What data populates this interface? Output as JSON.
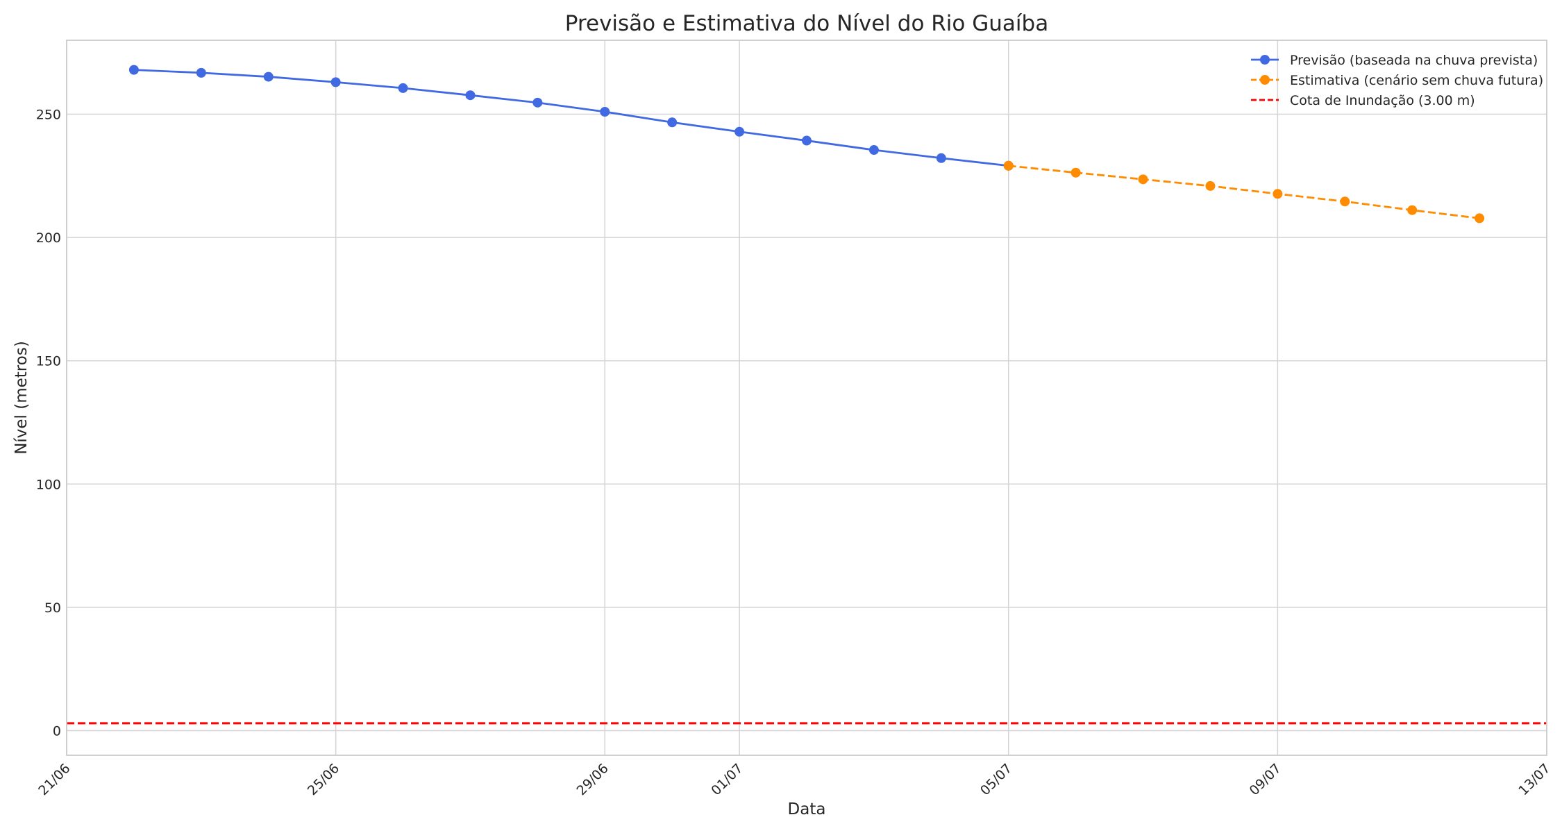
{
  "chart_data": {
    "type": "line",
    "title": "Previsão e Estimativa do Nível do Rio Guaíba",
    "xlabel": "Data",
    "ylabel": "Nível (metros)",
    "xlim": [
      "2024-06-21",
      "2024-07-13"
    ],
    "ylim": [
      -10,
      280
    ],
    "x_ticks": [
      "21/06",
      "25/06",
      "29/06",
      "01/07",
      "05/07",
      "09/07",
      "13/07"
    ],
    "x_tick_dates": [
      "2024-06-21",
      "2024-06-25",
      "2024-06-29",
      "2024-07-01",
      "2024-07-05",
      "2024-07-09",
      "2024-07-13"
    ],
    "y_ticks": [
      "0",
      "50",
      "100",
      "150",
      "200",
      "250"
    ],
    "y_tick_values": [
      0,
      50,
      100,
      150,
      200,
      250
    ],
    "grid": true,
    "legend_position": "top-right",
    "series": [
      {
        "name": "Previsão (baseada na chuva prevista)",
        "color": "#4169e1",
        "style": "solid-marker",
        "x": [
          "2024-06-22",
          "2024-06-23",
          "2024-06-24",
          "2024-06-25",
          "2024-06-26",
          "2024-06-27",
          "2024-06-28",
          "2024-06-29",
          "2024-06-30",
          "2024-07-01",
          "2024-07-02",
          "2024-07-03",
          "2024-07-04",
          "2024-07-05"
        ],
        "values": [
          268,
          266.8,
          265.2,
          263,
          260.6,
          257.7,
          254.7,
          251,
          246.7,
          242.9,
          239.3,
          235.5,
          232.2,
          229.1
        ]
      },
      {
        "name": "Estimativa (cenário sem chuva futura)",
        "color": "#ff8c00",
        "style": "dashed-marker",
        "x": [
          "2024-07-05",
          "2024-07-06",
          "2024-07-07",
          "2024-07-08",
          "2024-07-09",
          "2024-07-10",
          "2024-07-11",
          "2024-07-12"
        ],
        "values": [
          229.1,
          226.3,
          223.6,
          220.9,
          217.7,
          214.6,
          211.1,
          207.8
        ]
      },
      {
        "name": "Cota de Inundação (3.00 m)",
        "color": "#ff0000",
        "style": "dashed-hline",
        "y": 3.0
      }
    ]
  }
}
